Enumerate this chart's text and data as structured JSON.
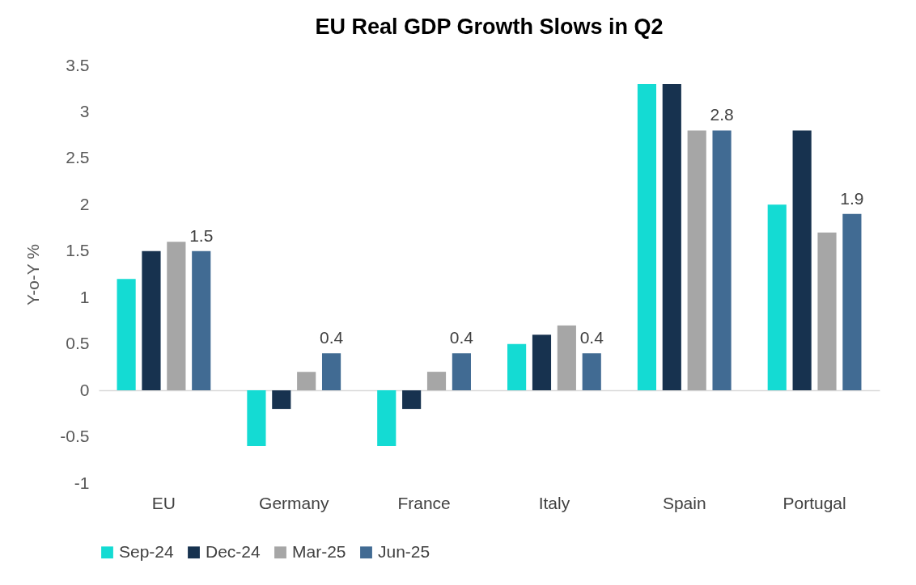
{
  "chart_data": {
    "type": "bar",
    "title": "EU Real GDP Growth Slows in Q2",
    "ylabel": "Y-o-Y %",
    "categories": [
      "EU",
      "Germany",
      "France",
      "Italy",
      "Spain",
      "Portugal"
    ],
    "series": [
      {
        "name": "Sep-24",
        "color": "#14dbd3",
        "values": [
          1.2,
          -0.6,
          -0.6,
          0.5,
          3.3,
          2.0
        ]
      },
      {
        "name": "Dec-24",
        "color": "#17324f",
        "values": [
          1.5,
          -0.2,
          -0.2,
          0.6,
          3.3,
          2.8
        ]
      },
      {
        "name": "Mar-25",
        "color": "#a6a6a6",
        "values": [
          1.6,
          0.2,
          0.2,
          0.7,
          2.8,
          1.7
        ]
      },
      {
        "name": "Jun-25",
        "color": "#416b93",
        "values": [
          1.5,
          0.4,
          0.4,
          0.4,
          2.8,
          1.9
        ],
        "value_labels": [
          "1.5",
          "0.4",
          "0.4",
          "0.4",
          "2.8",
          "1.9"
        ]
      }
    ],
    "ylim": [
      -1,
      3.5
    ],
    "yticks": [
      -1,
      -0.5,
      0,
      0.5,
      1,
      1.5,
      2,
      2.5,
      3,
      3.5
    ],
    "legend": "bottom"
  }
}
